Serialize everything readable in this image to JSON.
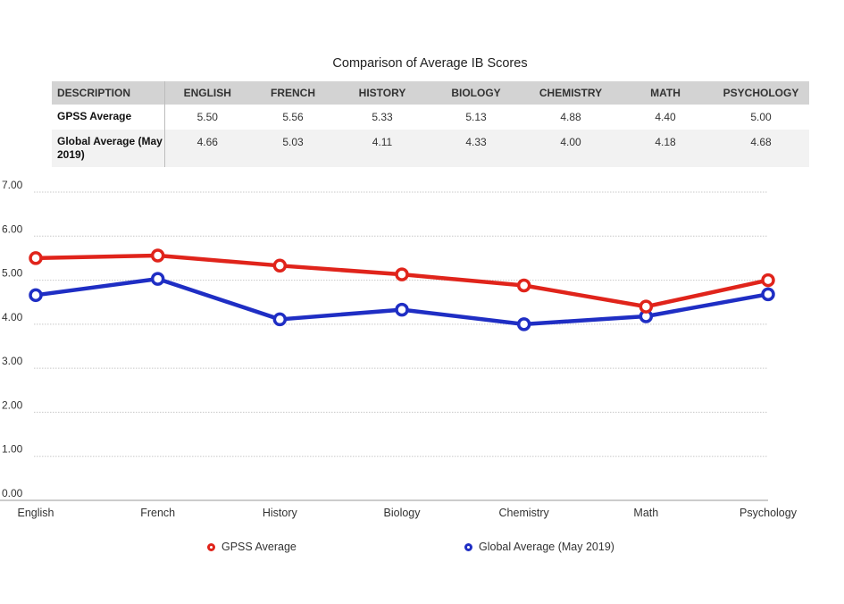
{
  "title": "Comparison of Average IB Scores",
  "table": {
    "headers": [
      "DESCRIPTION",
      "ENGLISH",
      "FRENCH",
      "HISTORY",
      "BIOLOGY",
      "CHEMISTRY",
      "MATH",
      "PSYCHOLOGY"
    ],
    "rows": [
      {
        "label": "GPSS Average",
        "values": [
          "5.50",
          "5.56",
          "5.33",
          "5.13",
          "4.88",
          "4.40",
          "5.00"
        ]
      },
      {
        "label": "Global Average (May 2019)",
        "values": [
          "4.66",
          "5.03",
          "4.11",
          "4.33",
          "4.00",
          "4.18",
          "4.68"
        ]
      }
    ]
  },
  "chart_data": {
    "type": "line",
    "categories": [
      "English",
      "French",
      "History",
      "Biology",
      "Chemistry",
      "Math",
      "Psychology"
    ],
    "series": [
      {
        "name": "GPSS Average",
        "color": "#e0241b",
        "values": [
          5.5,
          5.56,
          5.33,
          5.13,
          4.88,
          4.4,
          5.0
        ]
      },
      {
        "name": "Global Average (May 2019)",
        "color": "#1f2ec4",
        "values": [
          4.66,
          5.03,
          4.11,
          4.33,
          4.0,
          4.18,
          4.68
        ]
      }
    ],
    "ylim": [
      0,
      7
    ],
    "yticks": [
      "0.00",
      "1.00",
      "2.00",
      "3.00",
      "4.00",
      "5.00",
      "6.00",
      "7.00"
    ],
    "grid": true,
    "legend_position": "bottom"
  }
}
